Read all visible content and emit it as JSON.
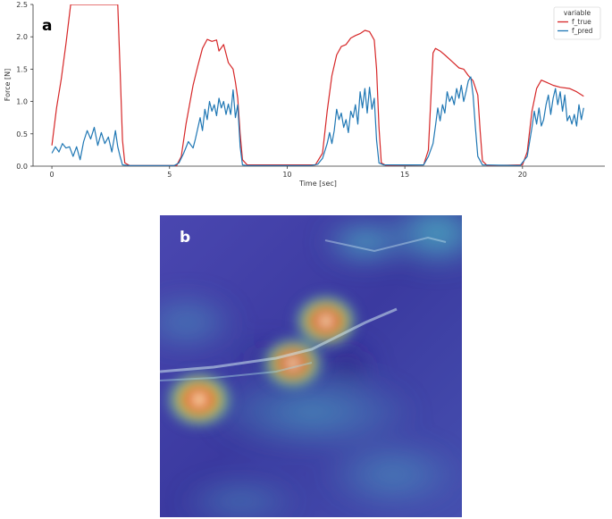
{
  "chart_data": [
    {
      "panel": "a",
      "type": "line",
      "title": "",
      "xlabel": "Time [sec]",
      "ylabel": "Force [N]",
      "xlim": [
        -0.8,
        23.5
      ],
      "ylim": [
        0,
        2.5
      ],
      "xticks": [
        0,
        5,
        10,
        15,
        20
      ],
      "yticks": [
        0.0,
        0.5,
        1.0,
        1.5,
        2.0,
        2.5
      ],
      "xtick_labels": [
        "0",
        "5",
        "10",
        "15",
        "20"
      ],
      "ytick_labels": [
        "0.0",
        "0.5",
        "1.0",
        "1.5",
        "2.0",
        "2.5"
      ],
      "grid": false,
      "legend": {
        "title": "variable",
        "placement": "top-right"
      },
      "series": [
        {
          "name": "f_true",
          "color": "#d62728",
          "points": [
            [
              0.0,
              0.32
            ],
            [
              0.2,
              0.9
            ],
            [
              0.4,
              1.35
            ],
            [
              0.6,
              1.9
            ],
            [
              0.8,
              2.5
            ],
            [
              2.8,
              2.5
            ],
            [
              2.9,
              1.5
            ],
            [
              3.0,
              0.4
            ],
            [
              3.1,
              0.05
            ],
            [
              3.3,
              0.01
            ],
            [
              5.3,
              0.01
            ],
            [
              5.5,
              0.15
            ],
            [
              5.7,
              0.65
            ],
            [
              6.0,
              1.25
            ],
            [
              6.2,
              1.55
            ],
            [
              6.4,
              1.82
            ],
            [
              6.6,
              1.96
            ],
            [
              6.8,
              1.93
            ],
            [
              7.0,
              1.95
            ],
            [
              7.1,
              1.78
            ],
            [
              7.3,
              1.88
            ],
            [
              7.5,
              1.6
            ],
            [
              7.7,
              1.5
            ],
            [
              7.8,
              1.3
            ],
            [
              7.9,
              1.05
            ],
            [
              8.0,
              0.5
            ],
            [
              8.1,
              0.1
            ],
            [
              8.3,
              0.02
            ],
            [
              11.2,
              0.02
            ],
            [
              11.5,
              0.2
            ],
            [
              11.7,
              0.85
            ],
            [
              11.9,
              1.4
            ],
            [
              12.1,
              1.72
            ],
            [
              12.3,
              1.85
            ],
            [
              12.5,
              1.88
            ],
            [
              12.7,
              1.98
            ],
            [
              12.9,
              2.02
            ],
            [
              13.1,
              2.05
            ],
            [
              13.3,
              2.1
            ],
            [
              13.5,
              2.08
            ],
            [
              13.7,
              1.95
            ],
            [
              13.8,
              1.5
            ],
            [
              13.9,
              0.6
            ],
            [
              14.0,
              0.05
            ],
            [
              14.2,
              0.01
            ],
            [
              15.8,
              0.02
            ],
            [
              16.0,
              0.25
            ],
            [
              16.1,
              1.0
            ],
            [
              16.2,
              1.75
            ],
            [
              16.3,
              1.82
            ],
            [
              16.5,
              1.78
            ],
            [
              16.7,
              1.72
            ],
            [
              17.0,
              1.62
            ],
            [
              17.3,
              1.52
            ],
            [
              17.5,
              1.5
            ],
            [
              17.7,
              1.4
            ],
            [
              17.9,
              1.32
            ],
            [
              18.1,
              1.1
            ],
            [
              18.2,
              0.55
            ],
            [
              18.3,
              0.08
            ],
            [
              18.5,
              0.01
            ],
            [
              20.0,
              0.02
            ],
            [
              20.2,
              0.22
            ],
            [
              20.4,
              0.85
            ],
            [
              20.6,
              1.2
            ],
            [
              20.8,
              1.33
            ],
            [
              21.0,
              1.3
            ],
            [
              21.3,
              1.25
            ],
            [
              21.6,
              1.22
            ],
            [
              22.0,
              1.2
            ],
            [
              22.3,
              1.15
            ],
            [
              22.6,
              1.08
            ]
          ]
        },
        {
          "name": "f_pred",
          "color": "#1f77b4",
          "points": [
            [
              0.0,
              0.2
            ],
            [
              0.15,
              0.3
            ],
            [
              0.3,
              0.22
            ],
            [
              0.45,
              0.35
            ],
            [
              0.6,
              0.28
            ],
            [
              0.75,
              0.3
            ],
            [
              0.9,
              0.15
            ],
            [
              1.05,
              0.3
            ],
            [
              1.2,
              0.1
            ],
            [
              1.35,
              0.38
            ],
            [
              1.5,
              0.55
            ],
            [
              1.65,
              0.42
            ],
            [
              1.8,
              0.6
            ],
            [
              1.95,
              0.32
            ],
            [
              2.1,
              0.52
            ],
            [
              2.25,
              0.35
            ],
            [
              2.4,
              0.45
            ],
            [
              2.55,
              0.22
            ],
            [
              2.7,
              0.55
            ],
            [
              2.8,
              0.3
            ],
            [
              2.9,
              0.15
            ],
            [
              3.0,
              0.02
            ],
            [
              3.3,
              0.01
            ],
            [
              5.2,
              0.01
            ],
            [
              5.4,
              0.05
            ],
            [
              5.6,
              0.2
            ],
            [
              5.8,
              0.38
            ],
            [
              6.0,
              0.28
            ],
            [
              6.1,
              0.42
            ],
            [
              6.3,
              0.75
            ],
            [
              6.4,
              0.55
            ],
            [
              6.5,
              0.88
            ],
            [
              6.6,
              0.72
            ],
            [
              6.7,
              1.0
            ],
            [
              6.8,
              0.85
            ],
            [
              6.9,
              0.95
            ],
            [
              7.0,
              0.78
            ],
            [
              7.1,
              1.05
            ],
            [
              7.2,
              0.9
            ],
            [
              7.3,
              1.0
            ],
            [
              7.4,
              0.8
            ],
            [
              7.5,
              0.96
            ],
            [
              7.6,
              0.8
            ],
            [
              7.7,
              1.18
            ],
            [
              7.8,
              0.75
            ],
            [
              7.9,
              0.95
            ],
            [
              8.0,
              0.3
            ],
            [
              8.1,
              0.02
            ],
            [
              8.3,
              0.01
            ],
            [
              11.0,
              0.01
            ],
            [
              11.3,
              0.03
            ],
            [
              11.5,
              0.12
            ],
            [
              11.7,
              0.35
            ],
            [
              11.8,
              0.52
            ],
            [
              11.9,
              0.35
            ],
            [
              12.0,
              0.55
            ],
            [
              12.1,
              0.88
            ],
            [
              12.2,
              0.72
            ],
            [
              12.3,
              0.82
            ],
            [
              12.4,
              0.6
            ],
            [
              12.5,
              0.72
            ],
            [
              12.6,
              0.52
            ],
            [
              12.7,
              0.85
            ],
            [
              12.8,
              0.75
            ],
            [
              12.9,
              0.95
            ],
            [
              13.0,
              0.65
            ],
            [
              13.1,
              1.15
            ],
            [
              13.2,
              0.9
            ],
            [
              13.3,
              1.2
            ],
            [
              13.4,
              0.82
            ],
            [
              13.5,
              1.22
            ],
            [
              13.6,
              0.88
            ],
            [
              13.7,
              1.05
            ],
            [
              13.8,
              0.4
            ],
            [
              13.9,
              0.05
            ],
            [
              14.1,
              0.02
            ],
            [
              15.8,
              0.02
            ],
            [
              16.0,
              0.15
            ],
            [
              16.2,
              0.35
            ],
            [
              16.3,
              0.62
            ],
            [
              16.4,
              0.9
            ],
            [
              16.5,
              0.7
            ],
            [
              16.6,
              0.95
            ],
            [
              16.7,
              0.82
            ],
            [
              16.8,
              1.15
            ],
            [
              16.9,
              1.0
            ],
            [
              17.0,
              1.08
            ],
            [
              17.1,
              0.95
            ],
            [
              17.2,
              1.2
            ],
            [
              17.3,
              1.05
            ],
            [
              17.4,
              1.25
            ],
            [
              17.5,
              1.0
            ],
            [
              17.6,
              1.15
            ],
            [
              17.7,
              1.32
            ],
            [
              17.8,
              1.38
            ],
            [
              17.9,
              1.1
            ],
            [
              18.0,
              0.6
            ],
            [
              18.1,
              0.15
            ],
            [
              18.3,
              0.02
            ],
            [
              19.9,
              0.01
            ],
            [
              20.2,
              0.15
            ],
            [
              20.4,
              0.6
            ],
            [
              20.5,
              0.85
            ],
            [
              20.6,
              0.65
            ],
            [
              20.7,
              0.9
            ],
            [
              20.8,
              0.62
            ],
            [
              20.9,
              0.72
            ],
            [
              21.0,
              0.95
            ],
            [
              21.1,
              1.1
            ],
            [
              21.2,
              0.8
            ],
            [
              21.3,
              1.05
            ],
            [
              21.4,
              1.2
            ],
            [
              21.5,
              0.95
            ],
            [
              21.6,
              1.15
            ],
            [
              21.7,
              0.85
            ],
            [
              21.8,
              1.1
            ],
            [
              21.9,
              0.7
            ],
            [
              22.0,
              0.78
            ],
            [
              22.1,
              0.65
            ],
            [
              22.2,
              0.8
            ],
            [
              22.3,
              0.62
            ],
            [
              22.4,
              0.95
            ],
            [
              22.5,
              0.72
            ],
            [
              22.6,
              0.9
            ]
          ]
        }
      ]
    },
    {
      "panel": "b",
      "type": "heatmap",
      "title": "",
      "colormap": "jet",
      "hotspots": [
        {
          "u": 0.13,
          "v": 0.61,
          "intensity": 1.0
        },
        {
          "u": 0.44,
          "v": 0.49,
          "intensity": 0.85
        },
        {
          "u": 0.55,
          "v": 0.35,
          "intensity": 0.9
        }
      ]
    }
  ],
  "panel_labels": {
    "a": "a",
    "b": "b"
  },
  "colors": {
    "f_true": "#d62728",
    "f_pred": "#1f77b4",
    "axis": "#333333"
  }
}
